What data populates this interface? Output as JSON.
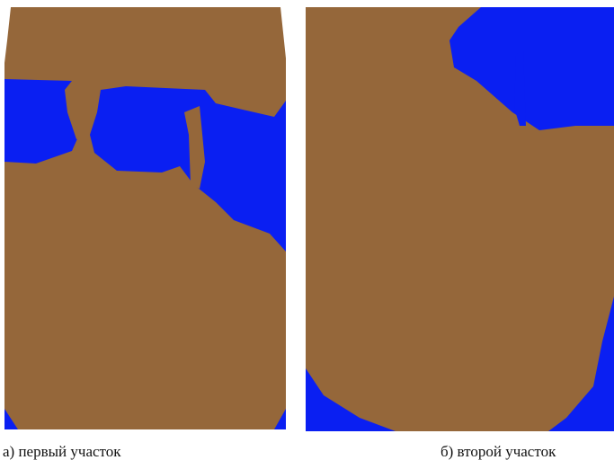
{
  "panels": [
    {
      "caption": "а) первый участок"
    },
    {
      "caption": "б) второй участок"
    }
  ]
}
